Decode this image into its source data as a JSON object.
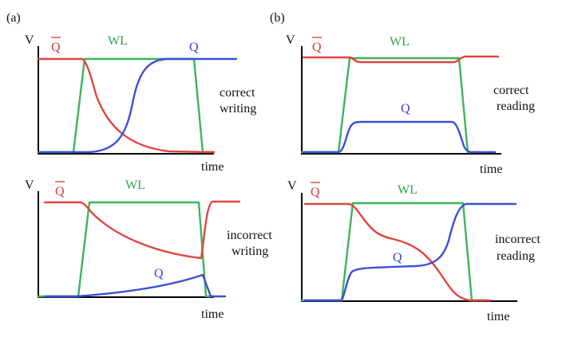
{
  "colors": {
    "qbar": "#e0453f",
    "wl": "#3cb45a",
    "q": "#3b4fd8",
    "axis": "#000000"
  },
  "panels": {
    "a": "(a)",
    "b": "(b)"
  },
  "plots": {
    "a_top": {
      "v": "V",
      "qbar": "Q",
      "wl": "WL",
      "q": "Q",
      "time": "time",
      "desc1": "correct",
      "desc2": "writing"
    },
    "a_bot": {
      "v": "V",
      "qbar": "Q",
      "wl": "WL",
      "q": "Q",
      "time": "time",
      "desc1": "incorrect",
      "desc2": "writing"
    },
    "b_top": {
      "v": "V",
      "qbar": "Q",
      "wl": "WL",
      "q": "Q",
      "time": "time",
      "desc1": "correct",
      "desc2": "reading"
    },
    "b_bot": {
      "v": "V",
      "qbar": "Q",
      "wl": "WL",
      "q": "Q",
      "time": "time",
      "desc1": "incorrect",
      "desc2": "reading"
    }
  }
}
